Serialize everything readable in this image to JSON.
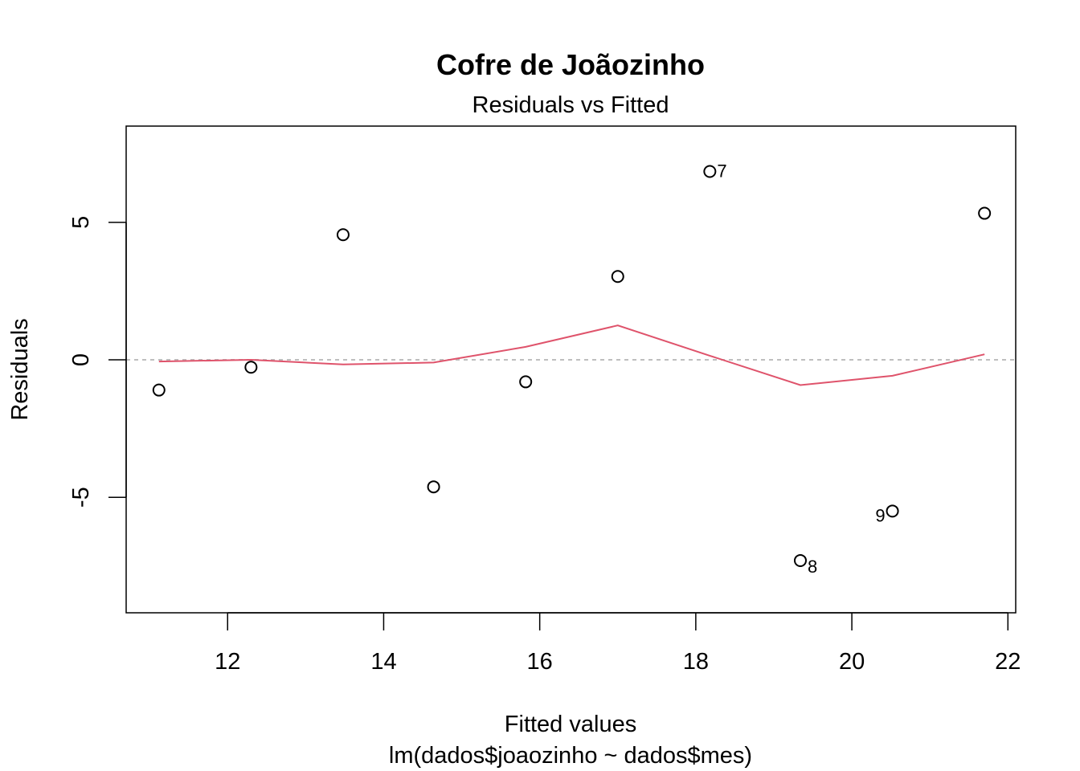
{
  "chart_data": {
    "type": "scatter",
    "title": "Cofre de Joãozinho",
    "subtitle": "Residuals vs Fitted",
    "xlabel": "Fitted values",
    "xlabel2": "lm(dados$joaozinho ~ dados$mes)",
    "ylabel": "Residuals",
    "xlim": [
      10.7,
      22.1
    ],
    "ylim": [
      -9.2,
      8.5
    ],
    "xticks": [
      12,
      14,
      16,
      18,
      20,
      22
    ],
    "xtick_labels": [
      "12",
      "14",
      "16",
      "18",
      "20",
      "22"
    ],
    "yticks": [
      -5,
      0,
      5
    ],
    "ytick_labels": [
      "-5",
      "0",
      "5"
    ],
    "points": [
      {
        "x": 11.12,
        "y": -1.1,
        "label": ""
      },
      {
        "x": 12.3,
        "y": -0.27,
        "label": ""
      },
      {
        "x": 13.48,
        "y": 4.55,
        "label": ""
      },
      {
        "x": 14.64,
        "y": -4.62,
        "label": ""
      },
      {
        "x": 15.82,
        "y": -0.8,
        "label": ""
      },
      {
        "x": 17.0,
        "y": 3.03,
        "label": ""
      },
      {
        "x": 18.18,
        "y": 6.85,
        "label": "7",
        "label_pos": "right"
      },
      {
        "x": 19.34,
        "y": -7.3,
        "label": "8",
        "label_pos": "below-right"
      },
      {
        "x": 20.52,
        "y": -5.5,
        "label": "9",
        "label_pos": "below-left"
      },
      {
        "x": 21.7,
        "y": 5.33,
        "label": ""
      }
    ],
    "smooth_line": {
      "x": [
        11.12,
        12.3,
        13.48,
        14.64,
        15.82,
        17.0,
        18.18,
        19.34,
        20.52,
        21.7
      ],
      "y": [
        -0.06,
        0.0,
        -0.17,
        -0.1,
        0.47,
        1.25,
        0.15,
        -0.92,
        -0.58,
        0.2
      ]
    },
    "reference_line": {
      "y": 0
    },
    "colors": {
      "points": "#000000",
      "smooth": "#DF536B",
      "reference": "#BEBEBE",
      "frame": "#000000"
    }
  }
}
